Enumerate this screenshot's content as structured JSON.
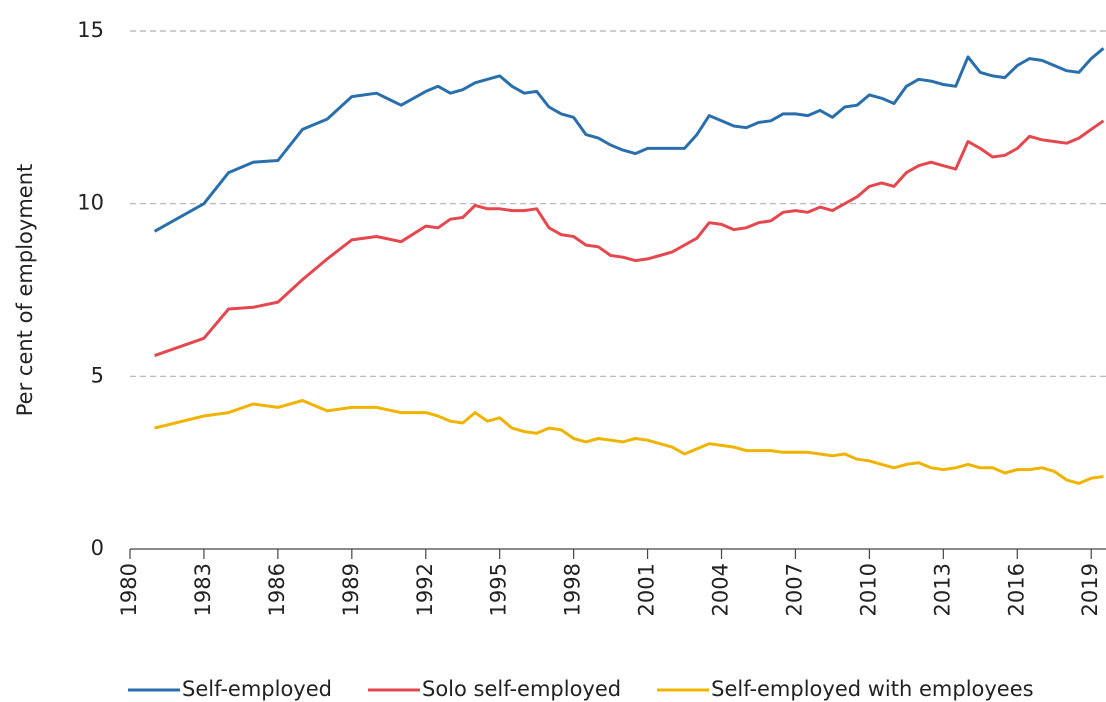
{
  "chart_data": {
    "type": "line",
    "y_label": "Per cent of employment",
    "x": [
      1981,
      1983,
      1984,
      1985,
      1986,
      1987,
      1988,
      1989,
      1990,
      1991,
      1992,
      1992.5,
      1993,
      1993.5,
      1994,
      1994.5,
      1995,
      1995.5,
      1996,
      1996.5,
      1997,
      1997.5,
      1998,
      1998.5,
      1999,
      1999.5,
      2000,
      2000.5,
      2001,
      2001.5,
      2002,
      2002.5,
      2003,
      2003.5,
      2004,
      2004.5,
      2005,
      2005.5,
      2006,
      2006.5,
      2007,
      2007.5,
      2008,
      2008.5,
      2009,
      2009.5,
      2010,
      2010.5,
      2011,
      2011.5,
      2012,
      2012.5,
      2013,
      2013.5,
      2014,
      2014.5,
      2015,
      2015.5,
      2016,
      2016.5,
      2017,
      2017.5,
      2018,
      2018.5,
      2019,
      2019.5
    ],
    "series": [
      {
        "name": "Self-employed",
        "color": "#2a6fad",
        "values": [
          9.2,
          10.0,
          10.9,
          11.2,
          11.25,
          12.15,
          12.45,
          13.1,
          13.2,
          12.85,
          13.25,
          13.4,
          13.2,
          13.3,
          13.5,
          13.6,
          13.7,
          13.4,
          13.2,
          13.25,
          12.8,
          12.6,
          12.5,
          12.0,
          11.9,
          11.7,
          11.55,
          11.45,
          11.6,
          11.6,
          11.6,
          11.6,
          12.0,
          12.55,
          12.4,
          12.25,
          12.2,
          12.35,
          12.4,
          12.6,
          12.6,
          12.55,
          12.7,
          12.5,
          12.8,
          12.85,
          13.15,
          13.05,
          12.9,
          13.4,
          13.6,
          13.55,
          13.45,
          13.4,
          14.25,
          13.8,
          13.7,
          13.65,
          14.0,
          14.2,
          14.15,
          14.0,
          13.85,
          13.8,
          14.2,
          14.5
        ]
      },
      {
        "name": "Solo self-employed",
        "color": "#e5474f",
        "values": [
          5.6,
          6.1,
          6.95,
          7.0,
          7.15,
          7.8,
          8.4,
          8.95,
          9.05,
          8.9,
          9.35,
          9.3,
          9.55,
          9.6,
          9.95,
          9.85,
          9.85,
          9.8,
          9.8,
          9.85,
          9.3,
          9.1,
          9.05,
          8.8,
          8.75,
          8.5,
          8.45,
          8.35,
          8.4,
          8.5,
          8.6,
          8.8,
          9.0,
          9.45,
          9.4,
          9.25,
          9.3,
          9.45,
          9.5,
          9.75,
          9.8,
          9.75,
          9.9,
          9.8,
          10.0,
          10.2,
          10.5,
          10.6,
          10.5,
          10.9,
          11.1,
          11.2,
          11.1,
          11.0,
          11.8,
          11.6,
          11.35,
          11.4,
          11.6,
          11.95,
          11.85,
          11.8,
          11.75,
          11.9,
          12.15,
          12.4
        ]
      },
      {
        "name": "Self-employed with employees",
        "color": "#f0b400",
        "values": [
          3.5,
          3.85,
          3.95,
          4.2,
          4.1,
          4.3,
          4.0,
          4.1,
          4.1,
          3.95,
          3.95,
          3.85,
          3.7,
          3.65,
          3.95,
          3.7,
          3.8,
          3.5,
          3.4,
          3.35,
          3.5,
          3.45,
          3.2,
          3.1,
          3.2,
          3.15,
          3.1,
          3.2,
          3.15,
          3.05,
          2.95,
          2.75,
          2.9,
          3.05,
          3.0,
          2.95,
          2.85,
          2.85,
          2.85,
          2.8,
          2.8,
          2.8,
          2.75,
          2.7,
          2.75,
          2.6,
          2.55,
          2.45,
          2.35,
          2.45,
          2.5,
          2.35,
          2.3,
          2.35,
          2.45,
          2.35,
          2.35,
          2.2,
          2.3,
          2.3,
          2.35,
          2.25,
          2.0,
          1.9,
          2.05,
          2.1
        ]
      }
    ],
    "xlim": [
      1980,
      2019.6
    ],
    "xticks": [
      1980,
      1983,
      1986,
      1989,
      1992,
      1995,
      1998,
      2001,
      2004,
      2007,
      2010,
      2013,
      2016,
      2019
    ],
    "ylim": [
      0,
      15
    ],
    "yticks": [
      0,
      5,
      10,
      15
    ],
    "grid": true
  }
}
